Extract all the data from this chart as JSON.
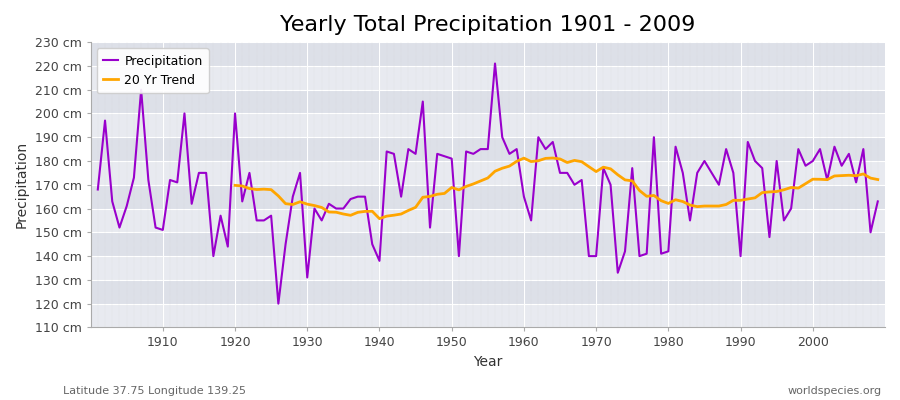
{
  "title": "Yearly Total Precipitation 1901 - 2009",
  "xlabel": "Year",
  "ylabel": "Precipitation",
  "subtitle_left": "Latitude 37.75 Longitude 139.25",
  "subtitle_right": "worldspecies.org",
  "ylim": [
    110,
    230
  ],
  "yticks": [
    110,
    120,
    130,
    140,
    150,
    160,
    170,
    180,
    190,
    200,
    210,
    220,
    230
  ],
  "ytick_labels": [
    "110 cm",
    "120 cm",
    "130 cm",
    "140 cm",
    "150 cm",
    "160 cm",
    "170 cm",
    "180 cm",
    "190 cm",
    "200 cm",
    "210 cm",
    "220 cm",
    "230 cm"
  ],
  "years": [
    1901,
    1902,
    1903,
    1904,
    1905,
    1906,
    1907,
    1908,
    1909,
    1910,
    1911,
    1912,
    1913,
    1914,
    1915,
    1916,
    1917,
    1918,
    1919,
    1920,
    1921,
    1922,
    1923,
    1924,
    1925,
    1926,
    1927,
    1928,
    1929,
    1930,
    1931,
    1932,
    1933,
    1934,
    1935,
    1936,
    1937,
    1938,
    1939,
    1940,
    1941,
    1942,
    1943,
    1944,
    1945,
    1946,
    1947,
    1948,
    1949,
    1950,
    1951,
    1952,
    1953,
    1954,
    1955,
    1956,
    1957,
    1958,
    1959,
    1960,
    1961,
    1962,
    1963,
    1964,
    1965,
    1966,
    1967,
    1968,
    1969,
    1970,
    1971,
    1972,
    1973,
    1974,
    1975,
    1976,
    1977,
    1978,
    1979,
    1980,
    1981,
    1982,
    1983,
    1984,
    1985,
    1986,
    1987,
    1988,
    1989,
    1990,
    1991,
    1992,
    1993,
    1994,
    1995,
    1996,
    1997,
    1998,
    1999,
    2000,
    2001,
    2002,
    2003,
    2004,
    2005,
    2006,
    2007,
    2008,
    2009
  ],
  "precip": [
    168,
    197,
    163,
    152,
    161,
    173,
    210,
    172,
    152,
    151,
    172,
    171,
    200,
    162,
    175,
    175,
    140,
    157,
    144,
    200,
    163,
    175,
    155,
    155,
    157,
    120,
    145,
    165,
    175,
    131,
    160,
    155,
    162,
    160,
    160,
    164,
    165,
    165,
    145,
    138,
    184,
    183,
    165,
    185,
    183,
    205,
    152,
    183,
    182,
    181,
    140,
    184,
    183,
    185,
    185,
    221,
    190,
    183,
    185,
    165,
    155,
    190,
    185,
    188,
    175,
    175,
    170,
    172,
    140,
    140,
    177,
    170,
    133,
    142,
    177,
    140,
    141,
    190,
    141,
    142,
    186,
    175,
    155,
    175,
    180,
    175,
    170,
    185,
    175,
    140,
    188,
    180,
    177,
    148,
    180,
    155,
    160,
    185,
    178,
    180,
    185,
    172,
    186,
    178,
    183,
    171,
    185,
    150,
    163
  ],
  "precip_color": "#9900cc",
  "trend_color": "#ffa500",
  "precip_linewidth": 1.5,
  "trend_linewidth": 2.0,
  "fig_bg_color": "#ffffff",
  "plot_bg_color": "#e8eaf0",
  "band_color_light": "#dde0e8",
  "band_color_dark": "#e8eaf0",
  "grid_major_color": "#ffffff",
  "grid_minor_color": "#ccccdd",
  "xticks": [
    1910,
    1920,
    1930,
    1940,
    1950,
    1960,
    1970,
    1980,
    1990,
    2000
  ],
  "title_fontsize": 16,
  "axis_label_fontsize": 10,
  "tick_fontsize": 9
}
